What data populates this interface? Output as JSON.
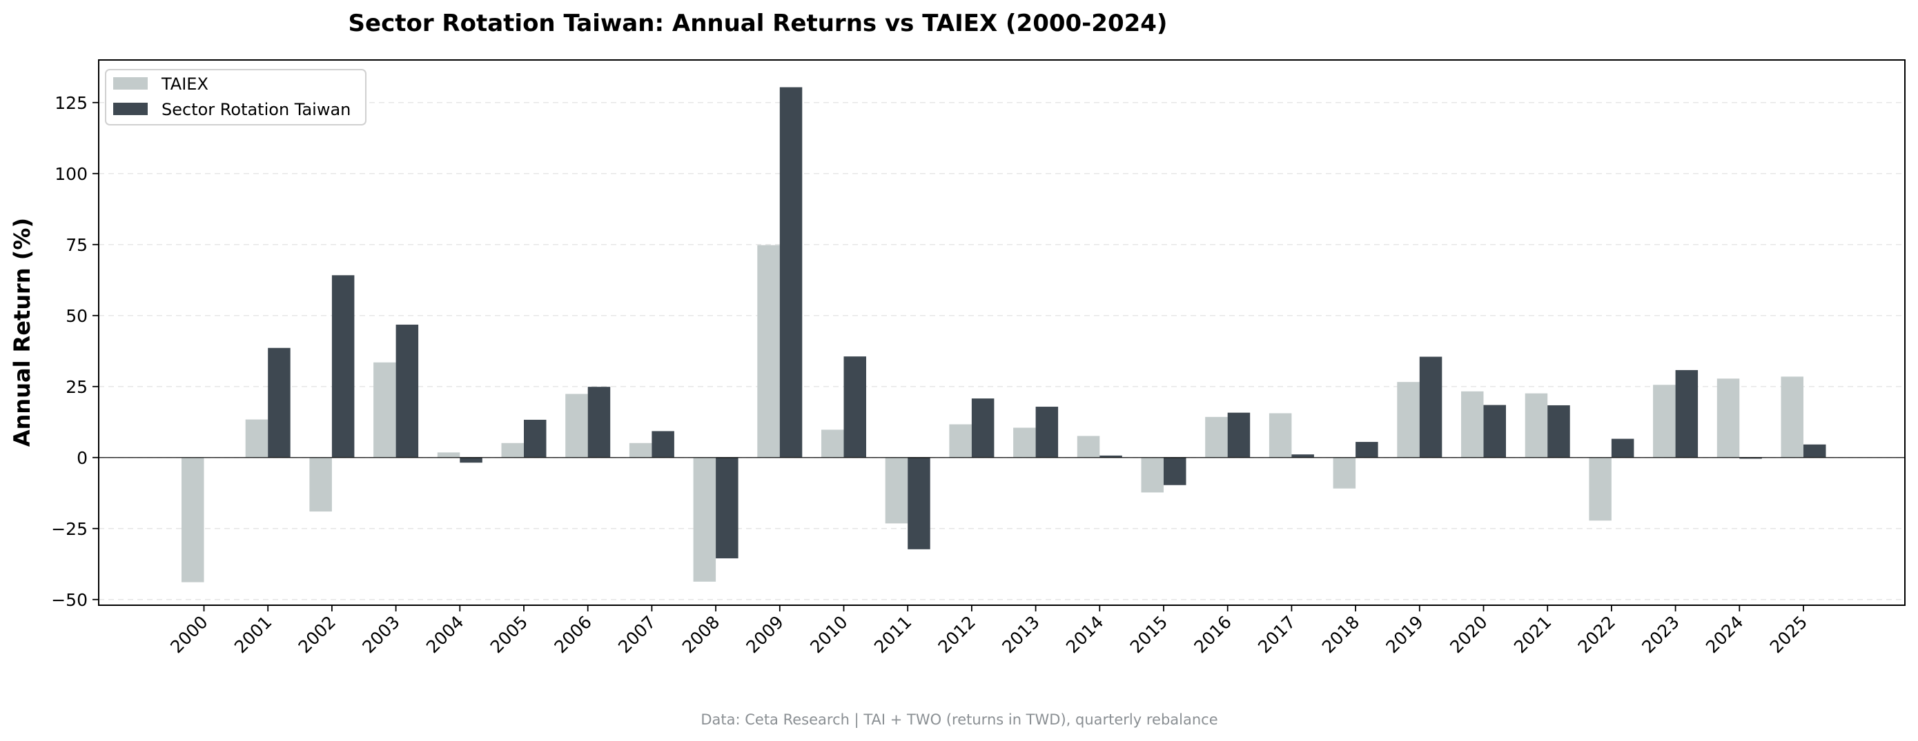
{
  "chart_data": {
    "type": "bar",
    "title": "Sector Rotation Taiwan: Annual Returns vs TAIEX (2000-2024)",
    "xlabel": "",
    "ylabel": "Annual Return (%)",
    "ylim": [
      -52,
      140
    ],
    "yticks": [
      -50,
      -25,
      0,
      25,
      50,
      75,
      100,
      125
    ],
    "ytick_labels": [
      "−50",
      "−25",
      "0",
      "25",
      "50",
      "75",
      "100",
      "125"
    ],
    "grid": "horizontal dashed",
    "legend_position": "top-left",
    "categories": [
      "2000",
      "2001",
      "2002",
      "2003",
      "2004",
      "2005",
      "2006",
      "2007",
      "2008",
      "2009",
      "2010",
      "2011",
      "2012",
      "2013",
      "2014",
      "2015",
      "2016",
      "2017",
      "2018",
      "2019",
      "2020",
      "2021",
      "2022",
      "2023",
      "2024",
      "2025"
    ],
    "series": [
      {
        "name": "TAIEX",
        "color": "#c3cbcb",
        "values": [
          -43.9,
          13.4,
          -19.0,
          33.5,
          1.8,
          5.1,
          22.4,
          5.1,
          -43.7,
          74.8,
          9.8,
          -23.2,
          11.7,
          10.5,
          7.6,
          -12.3,
          14.3,
          15.6,
          -10.9,
          26.6,
          23.3,
          22.6,
          -22.2,
          25.6,
          27.8,
          28.5
        ]
      },
      {
        "name": "Sector Rotation Taiwan",
        "color": "#3e4851",
        "values": [
          null,
          38.6,
          64.2,
          46.8,
          -1.8,
          13.3,
          24.9,
          9.3,
          -35.5,
          130.4,
          35.6,
          -32.3,
          20.8,
          17.9,
          0.7,
          -9.7,
          15.8,
          1.1,
          5.5,
          35.5,
          18.5,
          18.4,
          6.6,
          30.8,
          -0.4,
          4.6
        ]
      }
    ],
    "caption": "Data: Ceta Research | TAI + TWO (returns in TWD), quarterly rebalance"
  },
  "colors": {
    "axis": "#000000",
    "grid": "#e6e6e6",
    "legend_border": "#d0d0d0",
    "caption": "#8a8f93"
  }
}
